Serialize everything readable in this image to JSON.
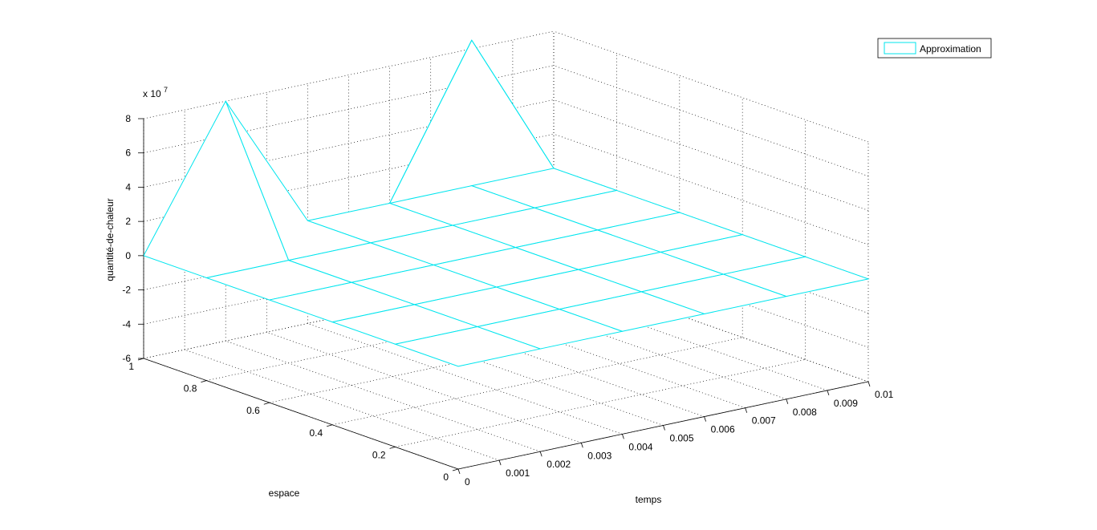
{
  "chart_data": {
    "type": "surface",
    "title": "",
    "xlabel": "temps",
    "ylabel": "espace",
    "zlabel": "quantité-de-chaleur",
    "z_multiplier": "x 10",
    "z_exponent": "7",
    "xlim": [
      0,
      0.01
    ],
    "ylim": [
      0,
      1
    ],
    "zlim": [
      -6,
      8
    ],
    "x_ticks": [
      "0",
      "0.001",
      "0.002",
      "0.003",
      "0.004",
      "0.005",
      "0.006",
      "0.007",
      "0.008",
      "0.009",
      "0.01"
    ],
    "y_ticks": [
      "0",
      "0.2",
      "0.4",
      "0.6",
      "0.8",
      "1"
    ],
    "z_ticks": [
      "-6",
      "-4",
      "-2",
      "0",
      "2",
      "4",
      "6",
      "8"
    ],
    "grid": true,
    "legend": {
      "position": "top-right",
      "entries": [
        "Approximation"
      ]
    },
    "series": [
      {
        "name": "Approximation",
        "color": "#00e5ee",
        "x": [
          0,
          0.002,
          0.004,
          0.006,
          0.008,
          0.01
        ],
        "y": [
          0,
          0.2,
          0.4,
          0.6,
          0.8,
          1
        ],
        "z_scaled": [
          [
            0,
            0,
            0,
            0,
            0,
            0
          ],
          [
            0,
            0,
            0,
            0,
            0,
            0
          ],
          [
            0,
            0,
            0,
            0,
            0,
            0
          ],
          [
            0,
            0,
            0,
            0,
            0,
            0
          ],
          [
            0,
            0,
            0,
            0,
            0,
            0
          ],
          [
            0,
            8,
            0,
            0,
            0,
            0
          ]
        ],
        "hidden_peak": {
          "x": 0.008,
          "y": 1,
          "z_scaled": 8.5
        }
      }
    ]
  }
}
